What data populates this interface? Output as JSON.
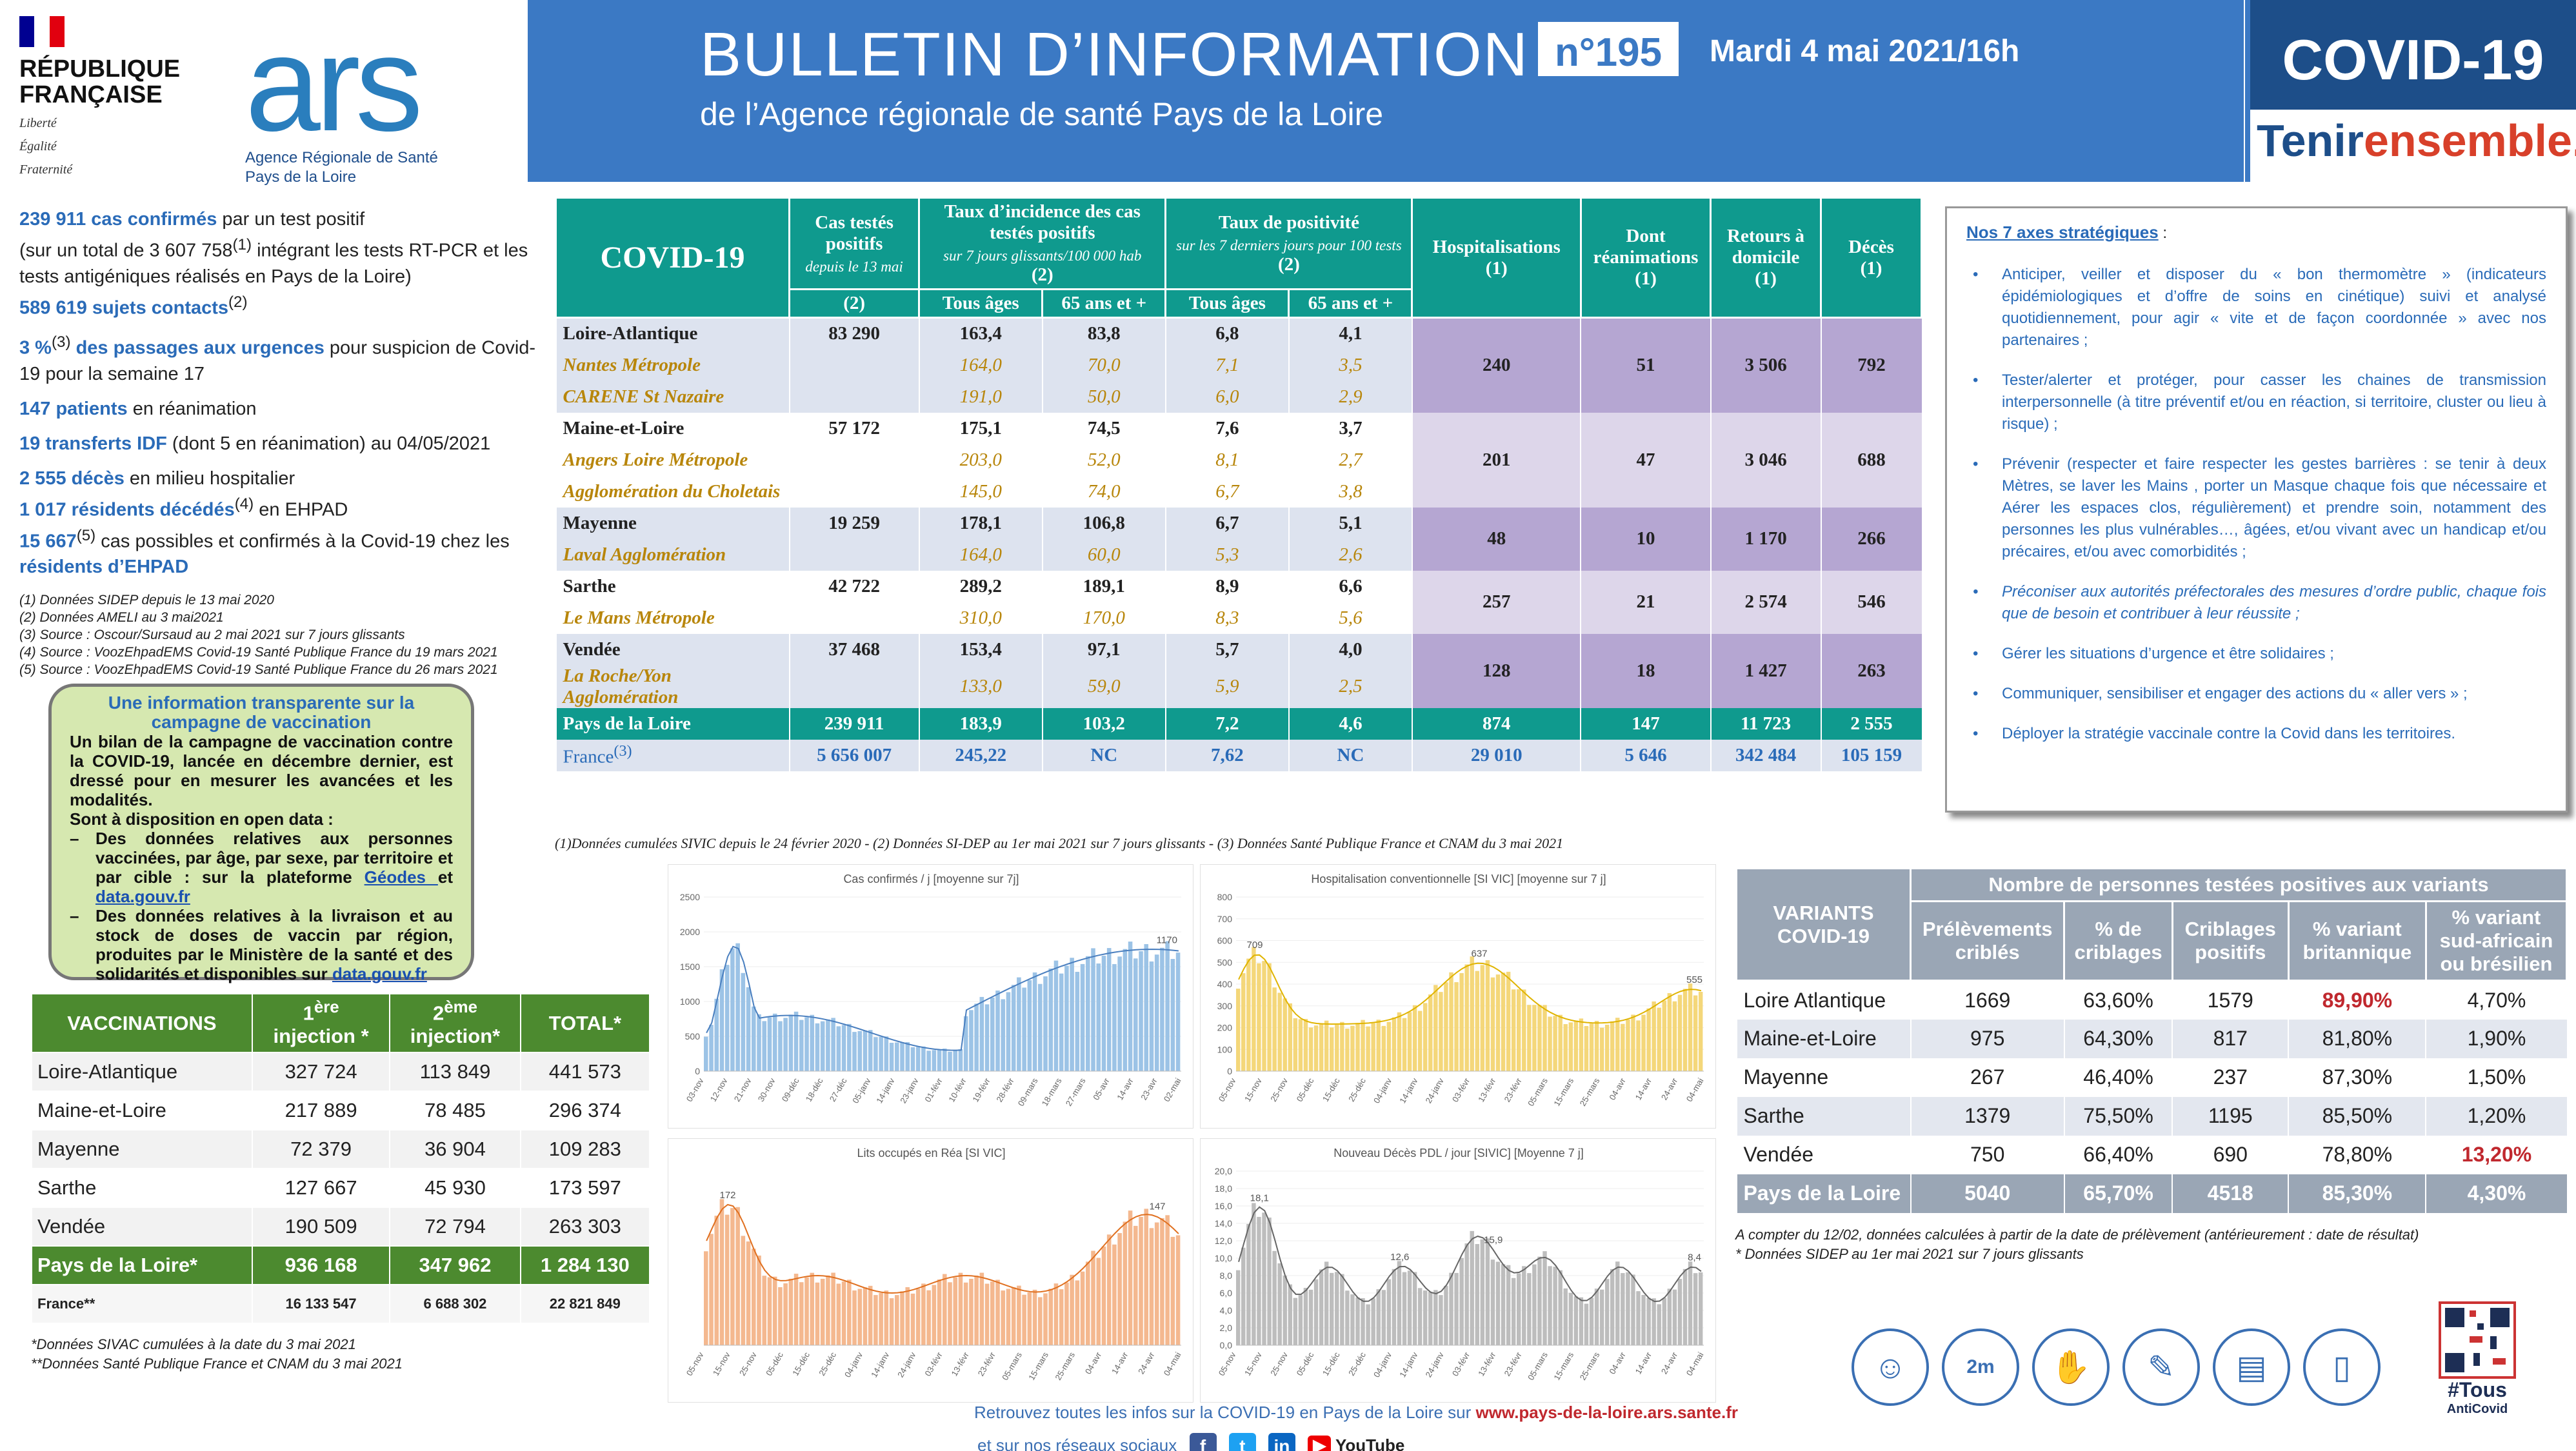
{
  "header": {
    "rf_lines": [
      "RÉPUBLIQUE",
      "FRANÇAISE"
    ],
    "rf_motto": [
      "Liberté",
      "Égalité",
      "Fraternité"
    ],
    "ars_word": "ars",
    "ars_sub1": "Agence Régionale de Santé",
    "ars_sub2": "Pays de la Loire",
    "title": "BULLETIN D’INFORMATION",
    "number": "n°195",
    "date": "Mardi 4 mai 2021/16h",
    "subtitle": "de l’Agence régionale de santé Pays de la Loire",
    "covid": "COVID-19",
    "tenir": "Tenir",
    "ensemble": "ensemble."
  },
  "left": {
    "s1_bold": "239 911 cas confirmés",
    "s1_rest": " par un test positif",
    "s1_line2": "(sur un total de 3 607 758",
    "s1_sup": "(1)",
    "s1_line2b": " intégrant les tests RT-PCR et les tests antigéniques réalisés en Pays de la Loire)",
    "s2_bold": "589 619 sujets contacts",
    "s2_sup": "(2)",
    "s3_bold": "3 %",
    "s3_sup": "(3)",
    "s3_bold2": " des passages aux urgences",
    "s3_rest": " pour suspicion de Covid-19 pour la semaine 17",
    "s4_bold": "147 patients",
    "s4_rest": " en réanimation",
    "s5_bold": "19 transferts IDF",
    "s5_rest": " (dont 5 en réanimation) au 04/05/2021",
    "s6_bold": "2 555 décès",
    "s6_rest": " en milieu hospitalier",
    "s7_bold": "1 017 résidents décédés",
    "s7_sup": "(4)",
    "s7_rest": " en EHPAD",
    "s8_bold": "15 667",
    "s8_sup": "(5)",
    "s8_rest": " cas possibles et confirmés à la Covid-19 chez les ",
    "s8_bold2": "résidents d’EHPAD",
    "notes": [
      "(1) Données SIDEP depuis le 13 mai 2020",
      "(2) Données AMELI au 3 mai2021",
      "(3) Source : Oscour/Sursaud au 2 mai 2021 sur 7 jours glissants",
      "(4) Source : VoozEhpadEMS Covid-19 Santé Publique France du 19 mars 2021",
      "(5) Source : VoozEhpadEMS Covid-19 Santé Publique France du 26 mars 2021"
    ]
  },
  "vax_info": {
    "title": "Une information transparente sur la campagne de vaccination",
    "p1": "Un bilan de la campagne de vaccination contre la COVID-19, lancée en décembre dernier, est dressé pour en mesurer les avancées et les modalités.",
    "p2": "Sont à disposition en open data :",
    "b1": "Des données relatives aux personnes vaccinées, par âge, par sexe, par territoire et par cible : sur la plateforme ",
    "b1_link1": "Géodes ",
    "b1_et": "et ",
    "b1_link2": "data.gouv.fr",
    "b2": "Des données relatives à la livraison et au stock de doses de vaccin par région, produites par le Ministère de la santé et des solidarités et disponibles sur ",
    "b2_link": "data.gouv.fr"
  },
  "vax_table": {
    "headers": [
      "VACCINATIONS",
      "1",
      "ère",
      "injection *",
      "2",
      "ème",
      "injection*",
      "TOTAL*"
    ],
    "rows": [
      [
        "Loire-Atlantique",
        "327 724",
        "113 849",
        "441 573"
      ],
      [
        "Maine-et-Loire",
        "217 889",
        "78 485",
        "296 374"
      ],
      [
        "Mayenne",
        "72 379",
        "36 904",
        "109 283"
      ],
      [
        "Sarthe",
        "127 667",
        "45 930",
        "173 597"
      ],
      [
        "Vendée",
        "190 509",
        "72 794",
        "263 303"
      ]
    ],
    "total": [
      "Pays de la Loire*",
      "936 168",
      "347 962",
      "1 284 130"
    ],
    "france": [
      "France**",
      "16 133 547",
      "6 688 302",
      "22 821 849"
    ],
    "notes": [
      "*Données SIVAC cumulées à la date du 3 mai 2021",
      "**Données Santé Publique France et CNAM du 3 mai 2021"
    ]
  },
  "main_table": {
    "h_covid": "COVID-19",
    "h_cas": "Cas testés positifs",
    "h_cas_sm": "depuis le 13 mai",
    "h_taux": "Taux d’incidence des cas testés positifs",
    "h_taux_sm": "sur 7 jours glissants/100 000 hab",
    "h_pos": "Taux de positivité",
    "h_pos_sm": "sur les 7 derniers jours pour 100 tests",
    "h_hosp": "Hospitalisations",
    "h_rea": "Dont réanimations",
    "h_ret": "Retours à domicile",
    "h_dec": "Décès",
    "ref1": "(1)",
    "ref2": "(2)",
    "tous": "Tous âges",
    "65": "65 ans et +",
    "rows": [
      {
        "name": "Loire-Atlantique",
        "cas": "83 290",
        "t1": "163,4",
        "t2": "83,8",
        "p1": "6,8",
        "p2": "4,1",
        "hosp": "240",
        "rea": "51",
        "ret": "3 506",
        "dec": "792",
        "subs": [
          {
            "name": "Nantes Métropole",
            "t1": "164,0",
            "t2": "70,0",
            "p1": "7,1",
            "p2": "3,5"
          },
          {
            "name": "CARENE St Nazaire",
            "t1": "191,0",
            "t2": "50,0",
            "p1": "6,0",
            "p2": "2,9"
          }
        ]
      },
      {
        "name": "Maine-et-Loire",
        "cas": "57 172",
        "t1": "175,1",
        "t2": "74,5",
        "p1": "7,6",
        "p2": "3,7",
        "hosp": "201",
        "rea": "47",
        "ret": "3 046",
        "dec": "688",
        "subs": [
          {
            "name": "Angers Loire Métropole",
            "t1": "203,0",
            "t2": "52,0",
            "p1": "8,1",
            "p2": "2,7"
          },
          {
            "name": "Agglomération du Choletais",
            "t1": "145,0",
            "t2": "74,0",
            "p1": "6,7",
            "p2": "3,8"
          }
        ]
      },
      {
        "name": "Mayenne",
        "cas": "19 259",
        "t1": "178,1",
        "t2": "106,8",
        "p1": "6,7",
        "p2": "5,1",
        "hosp": "48",
        "rea": "10",
        "ret": "1 170",
        "dec": "266",
        "subs": [
          {
            "name": "Laval Agglomération",
            "t1": "164,0",
            "t2": "60,0",
            "p1": "5,3",
            "p2": "2,6"
          }
        ]
      },
      {
        "name": "Sarthe",
        "cas": "42 722",
        "t1": "289,2",
        "t2": "189,1",
        "p1": "8,9",
        "p2": "6,6",
        "hosp": "257",
        "rea": "21",
        "ret": "2 574",
        "dec": "546",
        "subs": [
          {
            "name": "Le Mans Métropole",
            "t1": "310,0",
            "t2": "170,0",
            "p1": "8,3",
            "p2": "5,6"
          }
        ]
      },
      {
        "name": "Vendée",
        "cas": "37 468",
        "t1": "153,4",
        "t2": "97,1",
        "p1": "5,7",
        "p2": "4,0",
        "hosp": "128",
        "rea": "18",
        "ret": "1 427",
        "dec": "263",
        "subs": [
          {
            "name": "La Roche/Yon Agglomération",
            "t1": "133,0",
            "t2": "59,0",
            "p1": "5,9",
            "p2": "2,5"
          }
        ]
      }
    ],
    "pdl": [
      "Pays de la Loire",
      "239 911",
      "183,9",
      "103,2",
      "7,2",
      "4,6",
      "874",
      "147",
      "11 723",
      "2 555"
    ],
    "france_name": "France",
    "france_sup": "(3)",
    "france": [
      "5 656 007",
      "245,22",
      "NC",
      "7,62",
      "NC",
      "29 010",
      "5 646",
      "342 484",
      "105 159"
    ],
    "note": "(1)Données cumulées SIVIC depuis le 24 février 2020 - (2) Données SI-DEP au 1er mai 2021 sur 7 jours glissants - (3) Données Santé Publique France et CNAM du 3 mai 2021"
  },
  "axes": {
    "title": "Nos 7 axes stratégiques",
    "colon": " :",
    "items": [
      "Anticiper, veiller et disposer du « bon thermomètre » (indicateurs épidémiologiques et d’offre de soins en cinétique) suivi et analysé quotidiennement, pour agir « vite et de façon coordonnée » avec nos partenaires ;",
      "Tester/alerter et protéger, pour casser les chaines de transmission interpersonnelle (à titre préventif et/ou en réaction, si territoire, cluster ou lieu à risque) ;",
      "Prévenir (respecter et faire respecter les gestes barrières : se tenir à deux Mètres, se laver les Mains , porter un Masque chaque fois que nécessaire et Aérer les espaces clos, régulièrement) et prendre soin, notamment des personnes les plus vulnérables…, âgées, et/ou vivant avec un handicap et/ou précaires, et/ou avec comorbidités ;",
      "Préconiser aux autorités préfectorales des mesures d’ordre public, chaque fois que de besoin et contribuer à leur réussite ;",
      "Gérer les situations d’urgence et être solidaires ;",
      "Communiquer, sensibiliser et engager des actions du « aller vers » ;",
      "Déployer la stratégie vaccinale contre la Covid dans les territoires."
    ]
  },
  "charts": [
    {
      "title": "Cas confirmés / j [moyenne sur 7j]",
      "color": "#9cc3e6",
      "line": "#4a7fbf",
      "yticks": [
        "0",
        "500",
        "1000",
        "1500",
        "2000",
        "2500"
      ],
      "ymax": 2500,
      "label": "1170",
      "xticks": [
        "03-nov",
        "12-nov",
        "21-nov",
        "30-nov",
        "09-déc",
        "18-déc",
        "27-déc",
        "05-janv",
        "14-janv",
        "23-janv",
        "01-févr",
        "10-févr",
        "19-févr",
        "28-févr",
        "09-mars",
        "18-mars",
        "27-mars",
        "05-avr",
        "14-avr",
        "23-avr",
        "02-mai"
      ]
    },
    {
      "title": "Hospitalisation conventionnelle [SI VIC] [moyenne sur 7 j]",
      "color": "#f4d77a",
      "line": "#e0b400",
      "yticks": [
        "0",
        "100",
        "200",
        "300",
        "400",
        "500",
        "600",
        "700",
        "800"
      ],
      "ymax": 800,
      "labels": [
        "709",
        "637",
        "555"
      ],
      "xticks": [
        "05-nov",
        "15-nov",
        "25-nov",
        "05-déc",
        "15-déc",
        "25-déc",
        "04-janv",
        "14-janv",
        "24-janv",
        "03-févr",
        "13-févr",
        "23-févr",
        "05-mars",
        "15-mars",
        "25-mars",
        "04-avr",
        "14-avr",
        "24-avr",
        "04-mai"
      ]
    },
    {
      "title": "Lits occupés en Réa [SI VIC]",
      "color": "#f4b88f",
      "line": "#e07020",
      "labels": [
        "172",
        "147"
      ],
      "xticks": [
        "05-nov",
        "15-nov",
        "25-nov",
        "05-déc",
        "15-déc",
        "25-déc",
        "04-janv",
        "14-janv",
        "24-janv",
        "03-févr",
        "13-févr",
        "23-févr",
        "05-mars",
        "15-mars",
        "25-mars",
        "04-avr",
        "14-avr",
        "24-avr",
        "04-mai"
      ]
    },
    {
      "title": "Nouveau Décès PDL / jour [SIVIC] [Moyenne 7 j]",
      "color": "#bdbdbd",
      "line": "#666",
      "yticks": [
        "0,0",
        "2,0",
        "4,0",
        "6,0",
        "8,0",
        "10,0",
        "12,0",
        "14,0",
        "16,0",
        "18,0",
        "20,0"
      ],
      "ymax": 20,
      "labels": [
        "18,1",
        "12,6",
        "15,9",
        "8,4"
      ],
      "xticks": [
        "05-nov",
        "15-nov",
        "25-nov",
        "05-déc",
        "15-déc",
        "25-déc",
        "04-janv",
        "14-janv",
        "24-janv",
        "03-févr",
        "13-févr",
        "23-févr",
        "05-mars",
        "15-mars",
        "25-mars",
        "04-avr",
        "14-avr",
        "24-avr",
        "04-mai"
      ]
    }
  ],
  "variants": {
    "h_left": "VARIANTS COVID-19",
    "h_top": "Nombre de personnes testées positives aux variants",
    "cols": [
      "Prélèvements criblés",
      "% de criblages",
      "Criblages positifs",
      "% variant britannique",
      "% variant sud-africain ou brésilien"
    ],
    "rows": [
      [
        "Loire Atlantique",
        "1669",
        "63,60%",
        "1579",
        "89,90%",
        "4,70%"
      ],
      [
        "Maine-et-Loire",
        "975",
        "64,30%",
        "817",
        "81,80%",
        "1,90%"
      ],
      [
        "Mayenne",
        "267",
        "46,40%",
        "237",
        "87,30%",
        "1,50%"
      ],
      [
        "Sarthe",
        "1379",
        "75,50%",
        "1195",
        "85,50%",
        "1,20%"
      ],
      [
        "Vendée",
        "750",
        "66,40%",
        "690",
        "78,80%",
        "13,20%"
      ]
    ],
    "pdl": [
      "Pays de la Loire",
      "5040",
      "65,70%",
      "4518",
      "85,30%",
      "4,30%"
    ],
    "notes": [
      "A compter du 12/02, données calculées à partir de la date de prélèvement (antérieurement : date de résultat)",
      "* Données SIDEP au 1er mai 2021 sur 7 jours glissants"
    ]
  },
  "footer": {
    "line1": "Retrouvez toutes les infos sur la COVID-19 en Pays de la Loire sur ",
    "url": "www.pays-de-la-loire.ars.sante.fr",
    "line2": "et sur nos réseaux sociaux",
    "youtube": "YouTube",
    "tous": "#Tous",
    "anticovid": "AntiCovid",
    "distance": "2m"
  }
}
